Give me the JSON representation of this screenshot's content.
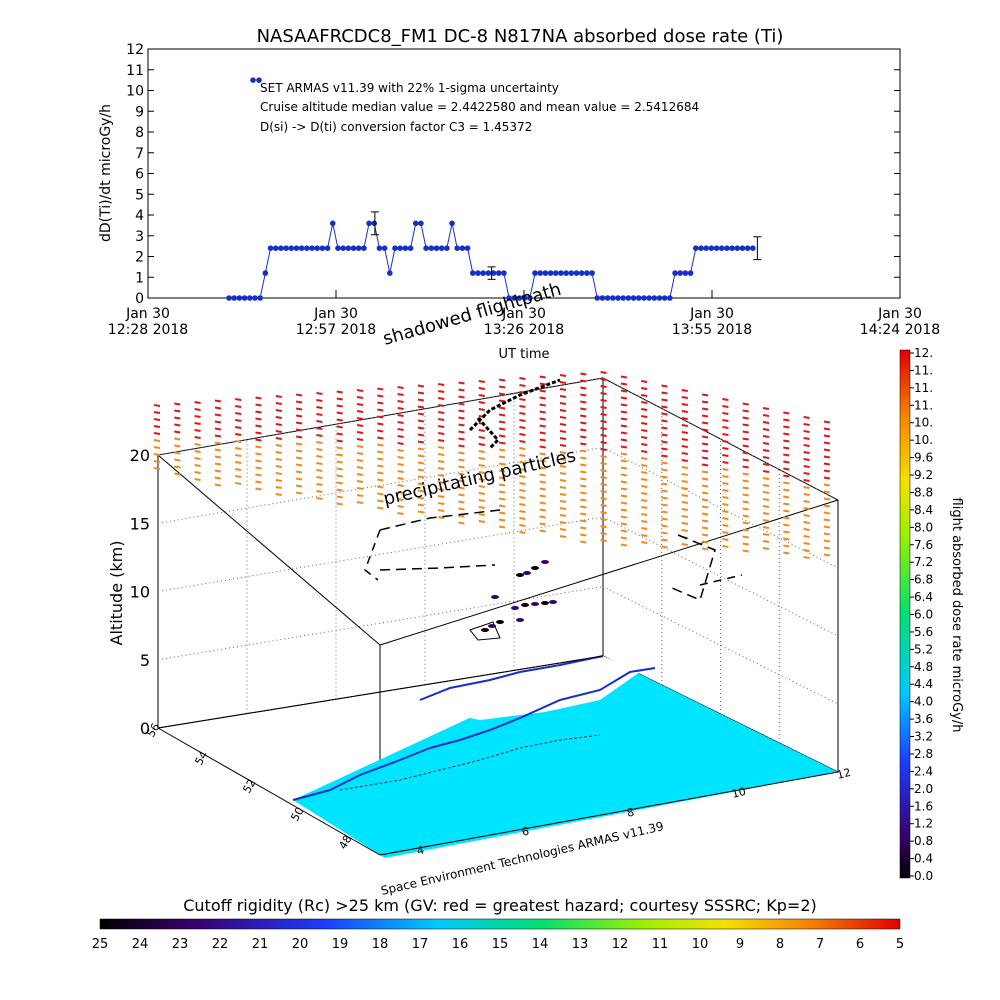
{
  "chart_data": [
    {
      "type": "line",
      "title": "NASAAFRCDC8_FM1 DC-8    N817NA absorbed dose rate (Ti)",
      "ylabel": "dD(Ti)/dt microGy/h",
      "xlabel": "UT time",
      "ylim": [
        0,
        12
      ],
      "yticks": [
        0,
        1,
        2,
        3,
        4,
        5,
        6,
        7,
        8,
        9,
        10,
        11,
        12
      ],
      "xlim_minutes": [
        0,
        116
      ],
      "xticks": [
        {
          "m": 0,
          "line1": "Jan 30",
          "line2": "12:28 2018"
        },
        {
          "m": 29,
          "line1": "Jan 30",
          "line2": "12:57 2018"
        },
        {
          "m": 58,
          "line1": "Jan 30",
          "line2": "13:26 2018"
        },
        {
          "m": 87,
          "line1": "Jan 30",
          "line2": "13:55 2018"
        },
        {
          "m": 116,
          "line1": "Jan 30",
          "line2": "14:24 2018"
        }
      ],
      "annotations": [
        "SET ARMAS v11.39 with 22% 1-sigma uncertainty",
        "Cruise altitude median value = 2.4422580 and mean value = 2.5412684",
        "D(si) -> D(ti) conversion factor C3 = 1.45372"
      ],
      "legend_marker_value": 10.5,
      "series": [
        {
          "values": [
            [
              12.5,
              0
            ],
            [
              13.3,
              0
            ],
            [
              14.1,
              0
            ],
            [
              14.9,
              0
            ],
            [
              15.7,
              0
            ],
            [
              16.5,
              0
            ],
            [
              17.3,
              0
            ],
            [
              18.1,
              1.2
            ],
            [
              18.9,
              2.4
            ],
            [
              19.7,
              2.4
            ],
            [
              20.5,
              2.4
            ],
            [
              21.3,
              2.4
            ],
            [
              22.1,
              2.4
            ],
            [
              22.9,
              2.4
            ],
            [
              23.7,
              2.4
            ],
            [
              24.5,
              2.4
            ],
            [
              25.3,
              2.4
            ],
            [
              26.1,
              2.4
            ],
            [
              26.9,
              2.4
            ],
            [
              27.7,
              2.4
            ],
            [
              28.5,
              3.6
            ],
            [
              29.3,
              2.4
            ],
            [
              30.1,
              2.4
            ],
            [
              30.9,
              2.4
            ],
            [
              31.7,
              2.4
            ],
            [
              32.5,
              2.4
            ],
            [
              33.3,
              2.4
            ],
            [
              34.1,
              3.6
            ],
            [
              34.9,
              3.6
            ],
            [
              35.7,
              2.4
            ],
            [
              36.5,
              2.4
            ],
            [
              37.3,
              1.2
            ],
            [
              38.1,
              2.4
            ],
            [
              38.9,
              2.4
            ],
            [
              39.7,
              2.4
            ],
            [
              40.5,
              2.4
            ],
            [
              41.3,
              3.6
            ],
            [
              42.1,
              3.6
            ],
            [
              42.9,
              2.4
            ],
            [
              43.7,
              2.4
            ],
            [
              44.5,
              2.4
            ],
            [
              45.3,
              2.4
            ],
            [
              46.1,
              2.4
            ],
            [
              46.9,
              3.6
            ],
            [
              47.7,
              2.4
            ],
            [
              48.5,
              2.4
            ],
            [
              49.3,
              2.4
            ],
            [
              50.1,
              1.2
            ],
            [
              50.9,
              1.2
            ],
            [
              51.7,
              1.2
            ],
            [
              52.5,
              1.2
            ],
            [
              53.3,
              1.2
            ],
            [
              54.1,
              1.2
            ],
            [
              54.9,
              1.2
            ],
            [
              55.7,
              0
            ],
            [
              56.5,
              0
            ],
            [
              57.3,
              0
            ],
            [
              58.1,
              0
            ],
            [
              58.9,
              0
            ],
            [
              59.7,
              1.2
            ],
            [
              60.5,
              1.2
            ],
            [
              61.3,
              1.2
            ],
            [
              62.1,
              1.2
            ],
            [
              62.9,
              1.2
            ],
            [
              63.7,
              1.2
            ],
            [
              64.5,
              1.2
            ],
            [
              65.3,
              1.2
            ],
            [
              66.1,
              1.2
            ],
            [
              66.9,
              1.2
            ],
            [
              67.7,
              1.2
            ],
            [
              68.5,
              1.2
            ],
            [
              69.3,
              0
            ],
            [
              70.1,
              0
            ],
            [
              70.9,
              0
            ],
            [
              71.7,
              0
            ],
            [
              72.5,
              0
            ],
            [
              73.3,
              0
            ],
            [
              74.1,
              0
            ],
            [
              74.9,
              0
            ],
            [
              75.7,
              0
            ],
            [
              76.5,
              0
            ],
            [
              77.3,
              0
            ],
            [
              78.1,
              0
            ],
            [
              78.9,
              0
            ],
            [
              79.7,
              0
            ],
            [
              80.5,
              0
            ],
            [
              81.3,
              1.2
            ],
            [
              82.1,
              1.2
            ],
            [
              82.9,
              1.2
            ],
            [
              83.7,
              1.2
            ],
            [
              84.5,
              2.4
            ],
            [
              85.3,
              2.4
            ],
            [
              86.1,
              2.4
            ],
            [
              86.9,
              2.4
            ],
            [
              87.7,
              2.4
            ],
            [
              88.5,
              2.4
            ],
            [
              89.3,
              2.4
            ],
            [
              90.1,
              2.4
            ],
            [
              90.9,
              2.4
            ],
            [
              91.7,
              2.4
            ],
            [
              92.5,
              2.4
            ],
            [
              93.3,
              2.4
            ]
          ],
          "error_bars": [
            {
              "x": 35.0,
              "y": 3.6,
              "err": 0.55
            },
            {
              "x": 53.0,
              "y": 1.2,
              "err": 0.3
            },
            {
              "x": 94.0,
              "y": 2.4,
              "err": 0.55
            }
          ]
        }
      ]
    },
    {
      "type": "scatter",
      "subtype": "3d-flight-track",
      "zlabel": "Altitude (km)",
      "zticks": [
        0,
        5,
        10,
        15,
        20
      ],
      "x_ticks": [
        "4",
        "6",
        "8",
        "10",
        "12"
      ],
      "y_ticks": [
        "48",
        "50",
        "52",
        "54",
        "56"
      ],
      "annotations": [
        "shadowed flightpath",
        "precipitating particles",
        "Space Environment Technologies ARMAS v11.39"
      ],
      "colors": {
        "surface": "#00e5ff",
        "land": "#ffffff",
        "coast": "#1530c8",
        "track": "#000000",
        "precip_top": "#e0161a",
        "precip_bottom": "#f08a1c"
      },
      "colorbar": {
        "label": "flight absorbed dose rate microGy/h",
        "ticks": [
          "0.0",
          "0.4",
          "0.8",
          "1.2",
          "1.6",
          "2.0",
          "2.4",
          "2.8",
          "3.2",
          "3.6",
          "4.0",
          "4.4",
          "4.8",
          "5.2",
          "5.6",
          "6.0",
          "6.4",
          "6.8",
          "7.2",
          "7.6",
          "8.0",
          "8.4",
          "8.8",
          "9.2",
          "9.6",
          "10.",
          "10.",
          "11.",
          "11.",
          "11.",
          "12."
        ]
      }
    },
    {
      "type": "heatmap",
      "subtype": "colorbar",
      "title": "Cutoff rigidity (Rc) >25 km (GV: red = greatest hazard; courtesy SSSRC; Kp=2)",
      "ticks": [
        "25",
        "24",
        "23",
        "22",
        "21",
        "20",
        "19",
        "18",
        "17",
        "16",
        "15",
        "14",
        "13",
        "12",
        "11",
        "10",
        "9",
        "8",
        "7",
        "6",
        "5"
      ]
    }
  ]
}
